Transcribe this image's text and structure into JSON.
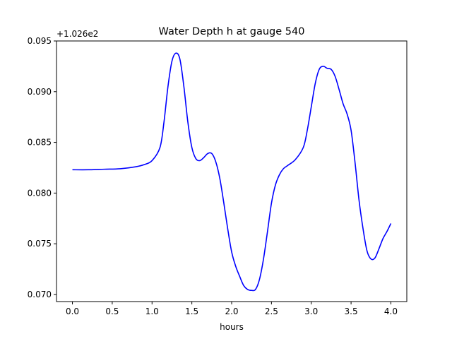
{
  "chart_data": {
    "type": "line",
    "title": "Water Depth h at gauge 540",
    "xlabel": "hours",
    "ylabel": "",
    "offset_text": "+1.026e2",
    "xlim": [
      -0.2,
      4.2
    ],
    "ylim": [
      0.0693,
      0.095
    ],
    "x_ticks": [
      0.0,
      0.5,
      1.0,
      1.5,
      2.0,
      2.5,
      3.0,
      3.5,
      4.0
    ],
    "x_tick_labels": [
      "0.0",
      "0.5",
      "1.0",
      "1.5",
      "2.0",
      "2.5",
      "3.0",
      "3.5",
      "4.0"
    ],
    "y_ticks": [
      0.07,
      0.075,
      0.08,
      0.085,
      0.09,
      0.095
    ],
    "y_tick_labels": [
      "0.070",
      "0.075",
      "0.080",
      "0.085",
      "0.090",
      "0.095"
    ],
    "grid": false,
    "series": [
      {
        "color": "#0000ff",
        "x": [
          0.0,
          0.2,
          0.4,
          0.6,
          0.8,
          0.9,
          1.0,
          1.1,
          1.15,
          1.2,
          1.25,
          1.3,
          1.35,
          1.4,
          1.45,
          1.5,
          1.55,
          1.6,
          1.65,
          1.7,
          1.75,
          1.8,
          1.85,
          1.9,
          1.95,
          2.0,
          2.05,
          2.1,
          2.15,
          2.2,
          2.25,
          2.3,
          2.35,
          2.4,
          2.45,
          2.5,
          2.55,
          2.6,
          2.65,
          2.7,
          2.8,
          2.9,
          2.95,
          3.0,
          3.05,
          3.1,
          3.15,
          3.2,
          3.25,
          3.3,
          3.35,
          3.4,
          3.45,
          3.5,
          3.55,
          3.6,
          3.65,
          3.7,
          3.75,
          3.8,
          3.85,
          3.9,
          3.95,
          4.0
        ],
        "y": [
          0.0823,
          0.0823,
          0.08235,
          0.0824,
          0.0826,
          0.0828,
          0.0832,
          0.0845,
          0.087,
          0.0905,
          0.093,
          0.0938,
          0.0932,
          0.0905,
          0.087,
          0.0845,
          0.0834,
          0.0832,
          0.0835,
          0.0839,
          0.0839,
          0.0831,
          0.0815,
          0.0791,
          0.0765,
          0.0742,
          0.0728,
          0.0718,
          0.0709,
          0.0705,
          0.0704,
          0.0705,
          0.0715,
          0.0735,
          0.0762,
          0.079,
          0.0808,
          0.0818,
          0.0824,
          0.0827,
          0.0833,
          0.0845,
          0.0862,
          0.0885,
          0.0908,
          0.0922,
          0.0925,
          0.0923,
          0.0922,
          0.0915,
          0.0902,
          0.0888,
          0.0878,
          0.0862,
          0.083,
          0.0793,
          0.0765,
          0.0743,
          0.0735,
          0.0736,
          0.0745,
          0.0755,
          0.0762,
          0.077
        ]
      }
    ]
  }
}
